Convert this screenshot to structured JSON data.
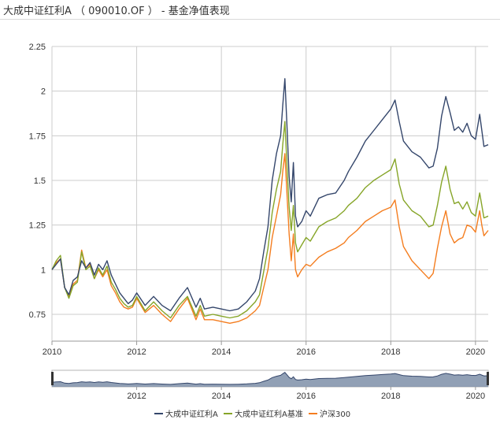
{
  "window": {
    "title": "大成中证红利A （ 090010.OF ） - 基金净值表现"
  },
  "colors": {
    "grid": "#cccccc",
    "axis": "#999999",
    "navigator_fill": "#7e8fa8",
    "navigator_line": "#34466b",
    "navigator_border": "#b5b5b5"
  },
  "chart_data": {
    "type": "line",
    "title": "",
    "xlabel": "",
    "ylabel": "",
    "xlim": [
      2010.0,
      2020.3
    ],
    "ylim": [
      0.6,
      2.25
    ],
    "x_ticks": [
      2010,
      2012,
      2014,
      2016,
      2018,
      2020
    ],
    "x_tick_labels": [
      "2010",
      "2012",
      "2014",
      "2016",
      "2018",
      "2020"
    ],
    "y_ticks": [
      0.75,
      1.0,
      1.25,
      1.5,
      1.75,
      2.0,
      2.25
    ],
    "y_tick_labels": [
      "0.75",
      "1",
      "1.25",
      "1.5",
      "1.75",
      "2",
      "2.25"
    ],
    "grid": true,
    "legend_position": "bottom-center",
    "navigator": {
      "x_ticks": [
        2012,
        2014,
        2016,
        2018,
        2020
      ],
      "x_tick_labels": [
        "2012",
        "2014",
        "2016",
        "2018",
        "2020"
      ]
    },
    "x": [
      2010.0,
      2010.1,
      2010.2,
      2010.3,
      2010.4,
      2010.5,
      2010.6,
      2010.7,
      2010.8,
      2010.9,
      2011.0,
      2011.1,
      2011.2,
      2011.3,
      2011.4,
      2011.5,
      2011.6,
      2011.7,
      2011.8,
      2011.9,
      2012.0,
      2012.2,
      2012.4,
      2012.6,
      2012.8,
      2013.0,
      2013.2,
      2013.4,
      2013.5,
      2013.6,
      2013.8,
      2014.0,
      2014.2,
      2014.4,
      2014.6,
      2014.8,
      2014.9,
      2015.0,
      2015.1,
      2015.2,
      2015.3,
      2015.4,
      2015.45,
      2015.5,
      2015.55,
      2015.6,
      2015.65,
      2015.7,
      2015.75,
      2015.8,
      2015.9,
      2016.0,
      2016.1,
      2016.3,
      2016.5,
      2016.7,
      2016.9,
      2017.0,
      2017.2,
      2017.4,
      2017.6,
      2017.8,
      2018.0,
      2018.1,
      2018.2,
      2018.3,
      2018.5,
      2018.7,
      2018.9,
      2019.0,
      2019.1,
      2019.2,
      2019.3,
      2019.4,
      2019.5,
      2019.6,
      2019.7,
      2019.8,
      2019.9,
      2020.0,
      2020.1,
      2020.15,
      2020.2,
      2020.3
    ],
    "series": [
      {
        "name": "大成中证红利A",
        "color": "#34466b",
        "values": [
          1.0,
          1.03,
          1.06,
          0.9,
          0.86,
          0.94,
          0.96,
          1.05,
          1.01,
          1.04,
          0.97,
          1.03,
          1.0,
          1.05,
          0.97,
          0.92,
          0.87,
          0.84,
          0.81,
          0.83,
          0.87,
          0.8,
          0.85,
          0.8,
          0.77,
          0.84,
          0.9,
          0.79,
          0.84,
          0.78,
          0.79,
          0.78,
          0.77,
          0.78,
          0.82,
          0.88,
          0.95,
          1.1,
          1.24,
          1.5,
          1.65,
          1.75,
          1.92,
          2.07,
          1.8,
          1.52,
          1.38,
          1.6,
          1.3,
          1.24,
          1.27,
          1.33,
          1.3,
          1.4,
          1.42,
          1.43,
          1.5,
          1.55,
          1.63,
          1.72,
          1.78,
          1.84,
          1.9,
          1.95,
          1.83,
          1.72,
          1.66,
          1.63,
          1.57,
          1.58,
          1.68,
          1.86,
          1.97,
          1.88,
          1.78,
          1.8,
          1.77,
          1.82,
          1.75,
          1.73,
          1.87,
          1.78,
          1.69,
          1.7
        ]
      },
      {
        "name": "大成中证红利A基准",
        "color": "#86a528",
        "values": [
          1.0,
          1.05,
          1.08,
          0.9,
          0.84,
          0.91,
          0.93,
          1.1,
          1.0,
          1.02,
          0.95,
          1.01,
          0.97,
          1.02,
          0.93,
          0.89,
          0.84,
          0.81,
          0.79,
          0.8,
          0.85,
          0.77,
          0.82,
          0.77,
          0.73,
          0.8,
          0.85,
          0.74,
          0.8,
          0.74,
          0.75,
          0.74,
          0.73,
          0.74,
          0.77,
          0.82,
          0.86,
          0.99,
          1.12,
          1.32,
          1.45,
          1.55,
          1.7,
          1.83,
          1.58,
          1.35,
          1.22,
          1.36,
          1.15,
          1.1,
          1.14,
          1.18,
          1.16,
          1.24,
          1.27,
          1.29,
          1.33,
          1.36,
          1.4,
          1.46,
          1.5,
          1.53,
          1.56,
          1.62,
          1.48,
          1.39,
          1.33,
          1.3,
          1.24,
          1.25,
          1.36,
          1.49,
          1.58,
          1.45,
          1.37,
          1.38,
          1.34,
          1.38,
          1.32,
          1.3,
          1.43,
          1.36,
          1.29,
          1.3
        ]
      },
      {
        "name": "沪深300",
        "color": "#f47d1f",
        "values": [
          1.0,
          1.04,
          1.06,
          0.9,
          0.85,
          0.92,
          0.94,
          1.11,
          1.01,
          1.03,
          0.95,
          1.0,
          0.96,
          1.0,
          0.91,
          0.87,
          0.82,
          0.79,
          0.78,
          0.79,
          0.84,
          0.76,
          0.8,
          0.75,
          0.71,
          0.78,
          0.84,
          0.72,
          0.78,
          0.72,
          0.72,
          0.71,
          0.7,
          0.71,
          0.73,
          0.77,
          0.8,
          0.9,
          1.0,
          1.18,
          1.3,
          1.42,
          1.55,
          1.65,
          1.42,
          1.2,
          1.05,
          1.2,
          1.0,
          0.96,
          1.0,
          1.03,
          1.02,
          1.07,
          1.1,
          1.12,
          1.15,
          1.18,
          1.22,
          1.27,
          1.3,
          1.33,
          1.35,
          1.39,
          1.24,
          1.13,
          1.05,
          1.0,
          0.95,
          0.98,
          1.12,
          1.24,
          1.33,
          1.2,
          1.15,
          1.17,
          1.18,
          1.25,
          1.24,
          1.21,
          1.33,
          1.25,
          1.19,
          1.22
        ]
      }
    ]
  }
}
